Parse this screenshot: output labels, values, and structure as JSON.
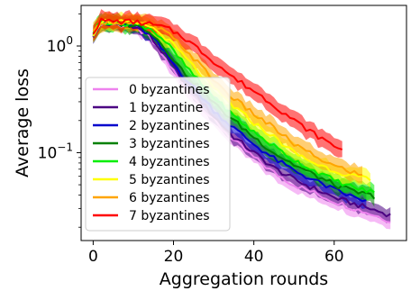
{
  "chart_data": {
    "type": "line",
    "title": "",
    "xlabel": "Aggregation rounds",
    "ylabel": "Average loss",
    "xlim": [
      -3,
      78
    ],
    "ylim": [
      0.015,
      2.4
    ],
    "yscale": "log",
    "x_ticks": [
      {
        "value": 0,
        "label": "0"
      },
      {
        "value": 20,
        "label": "20"
      },
      {
        "value": 40,
        "label": "40"
      },
      {
        "value": 60,
        "label": "60"
      }
    ],
    "y_ticks": [
      {
        "value": 1,
        "base": "10",
        "exp": "0"
      },
      {
        "value": 0.1,
        "base": "10",
        "exp": "−1"
      }
    ],
    "legend_position": "center-left",
    "series": [
      {
        "name": "0 byzantines",
        "color": "#ee82ee",
        "points": [
          [
            0,
            1.3
          ],
          [
            2,
            1.65
          ],
          [
            5,
            1.6
          ],
          [
            10,
            1.55
          ],
          [
            14,
            1.2
          ],
          [
            18,
            0.75
          ],
          [
            22,
            0.45
          ],
          [
            26,
            0.3
          ],
          [
            30,
            0.2
          ],
          [
            35,
            0.13
          ],
          [
            40,
            0.09
          ],
          [
            45,
            0.065
          ],
          [
            50,
            0.05
          ],
          [
            55,
            0.042
          ],
          [
            60,
            0.035
          ],
          [
            65,
            0.03
          ],
          [
            70,
            0.026
          ],
          [
            74,
            0.023
          ]
        ]
      },
      {
        "name": "1 byzantine",
        "color": "#4b0082",
        "points": [
          [
            0,
            1.25
          ],
          [
            2,
            1.6
          ],
          [
            5,
            1.6
          ],
          [
            10,
            1.55
          ],
          [
            14,
            1.25
          ],
          [
            18,
            0.8
          ],
          [
            22,
            0.5
          ],
          [
            26,
            0.33
          ],
          [
            30,
            0.22
          ],
          [
            35,
            0.14
          ],
          [
            40,
            0.1
          ],
          [
            45,
            0.072
          ],
          [
            50,
            0.056
          ],
          [
            55,
            0.046
          ],
          [
            60,
            0.038
          ],
          [
            65,
            0.033
          ],
          [
            70,
            0.029
          ],
          [
            74,
            0.026
          ]
        ]
      },
      {
        "name": "2 byzantines",
        "color": "#0000cd",
        "points": [
          [
            0,
            1.3
          ],
          [
            2,
            1.65
          ],
          [
            5,
            1.6
          ],
          [
            10,
            1.55
          ],
          [
            14,
            1.3
          ],
          [
            18,
            0.85
          ],
          [
            22,
            0.55
          ],
          [
            26,
            0.37
          ],
          [
            30,
            0.25
          ],
          [
            35,
            0.17
          ],
          [
            40,
            0.12
          ],
          [
            45,
            0.088
          ],
          [
            50,
            0.068
          ],
          [
            55,
            0.055
          ],
          [
            60,
            0.045
          ],
          [
            65,
            0.038
          ],
          [
            68,
            0.035
          ]
        ]
      },
      {
        "name": "3 byzantines",
        "color": "#008000",
        "points": [
          [
            0,
            1.3
          ],
          [
            2,
            1.65
          ],
          [
            5,
            1.62
          ],
          [
            10,
            1.58
          ],
          [
            14,
            1.4
          ],
          [
            18,
            0.95
          ],
          [
            22,
            0.6
          ],
          [
            26,
            0.42
          ],
          [
            30,
            0.29
          ],
          [
            35,
            0.2
          ],
          [
            40,
            0.14
          ],
          [
            45,
            0.1
          ],
          [
            50,
            0.077
          ],
          [
            55,
            0.062
          ],
          [
            60,
            0.05
          ],
          [
            65,
            0.043
          ],
          [
            70,
            0.039
          ]
        ]
      },
      {
        "name": "4 byzantines",
        "color": "#00ee00",
        "points": [
          [
            0,
            1.35
          ],
          [
            2,
            1.7
          ],
          [
            5,
            1.65
          ],
          [
            10,
            1.6
          ],
          [
            14,
            1.5
          ],
          [
            18,
            1.1
          ],
          [
            22,
            0.72
          ],
          [
            26,
            0.48
          ],
          [
            30,
            0.33
          ],
          [
            35,
            0.22
          ],
          [
            40,
            0.155
          ],
          [
            45,
            0.115
          ],
          [
            50,
            0.085
          ],
          [
            55,
            0.068
          ],
          [
            60,
            0.055
          ],
          [
            65,
            0.047
          ],
          [
            70,
            0.042
          ]
        ]
      },
      {
        "name": "5 byzantines",
        "color": "#ffff00",
        "points": [
          [
            0,
            1.3
          ],
          [
            2,
            1.7
          ],
          [
            5,
            1.7
          ],
          [
            10,
            1.62
          ],
          [
            14,
            1.55
          ],
          [
            18,
            1.2
          ],
          [
            22,
            0.85
          ],
          [
            26,
            0.58
          ],
          [
            30,
            0.4
          ],
          [
            35,
            0.27
          ],
          [
            40,
            0.19
          ],
          [
            45,
            0.14
          ],
          [
            50,
            0.1
          ],
          [
            55,
            0.08
          ],
          [
            60,
            0.068
          ],
          [
            65,
            0.06
          ],
          [
            69,
            0.055
          ]
        ]
      },
      {
        "name": "6 byzantines",
        "color": "#ffa500",
        "points": [
          [
            0,
            1.3
          ],
          [
            2,
            1.7
          ],
          [
            5,
            1.68
          ],
          [
            10,
            1.62
          ],
          [
            14,
            1.6
          ],
          [
            18,
            1.35
          ],
          [
            22,
            1.0
          ],
          [
            26,
            0.7
          ],
          [
            30,
            0.48
          ],
          [
            35,
            0.32
          ],
          [
            40,
            0.23
          ],
          [
            45,
            0.17
          ],
          [
            50,
            0.12
          ],
          [
            55,
            0.093
          ],
          [
            60,
            0.075
          ],
          [
            65,
            0.065
          ],
          [
            67,
            0.06
          ]
        ]
      },
      {
        "name": "7 byzantines",
        "color": "#ff0000",
        "points": [
          [
            0,
            1.35
          ],
          [
            2,
            1.72
          ],
          [
            5,
            1.7
          ],
          [
            10,
            1.68
          ],
          [
            14,
            1.6
          ],
          [
            18,
            1.48
          ],
          [
            22,
            1.25
          ],
          [
            26,
            0.95
          ],
          [
            30,
            0.72
          ],
          [
            35,
            0.5
          ],
          [
            40,
            0.38
          ],
          [
            45,
            0.28
          ],
          [
            50,
            0.2
          ],
          [
            55,
            0.15
          ],
          [
            60,
            0.115
          ],
          [
            62,
            0.11
          ]
        ]
      }
    ]
  }
}
